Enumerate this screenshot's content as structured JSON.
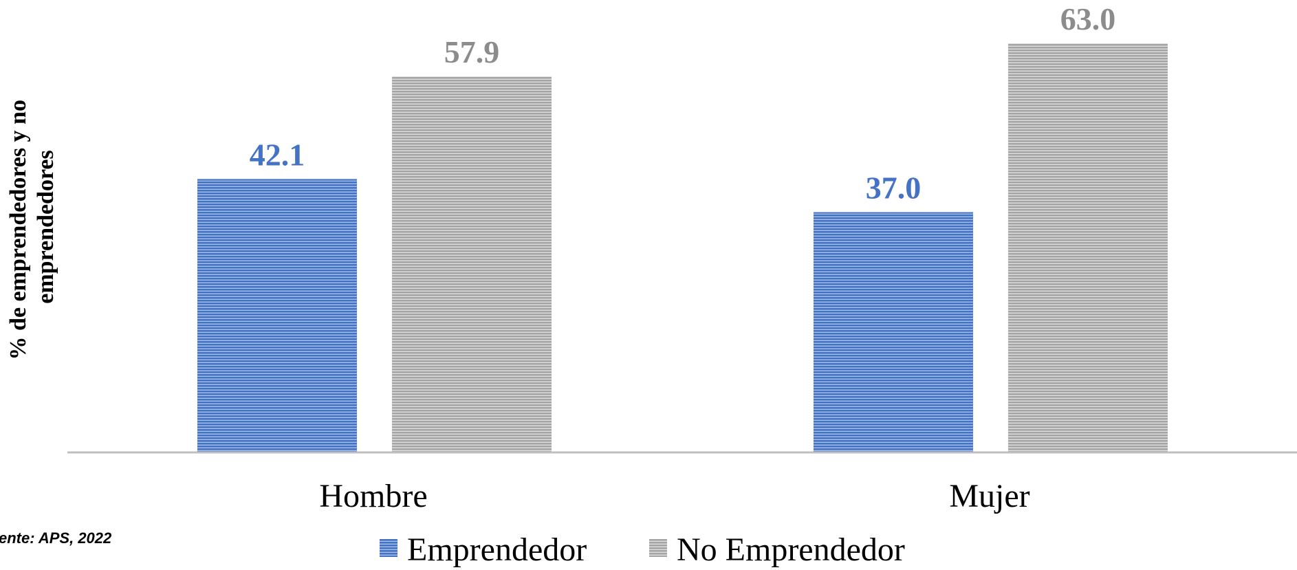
{
  "chart_data": {
    "type": "bar",
    "categories": [
      "Hombre",
      "Mujer"
    ],
    "series": [
      {
        "name": "Emprendedor",
        "values": [
          42.1,
          37.0
        ],
        "color": "#4472C4"
      },
      {
        "name": "No Emprendedor",
        "values": [
          57.9,
          63.0
        ],
        "color": "#A5A5A5"
      }
    ],
    "value_labels": [
      [
        "42.1",
        "37.0"
      ],
      [
        "57.9",
        "63.0"
      ]
    ],
    "label_colors": [
      "#4472C4",
      "#8C8C8C"
    ],
    "ylabel_lines": [
      "% de emprendedores y no",
      "emprendedores"
    ],
    "ylim": [
      0,
      63.0
    ],
    "axis_color": "#BFBFBF",
    "legend_position": "bottom",
    "grid": false
  },
  "source": "ente: APS, 2022"
}
